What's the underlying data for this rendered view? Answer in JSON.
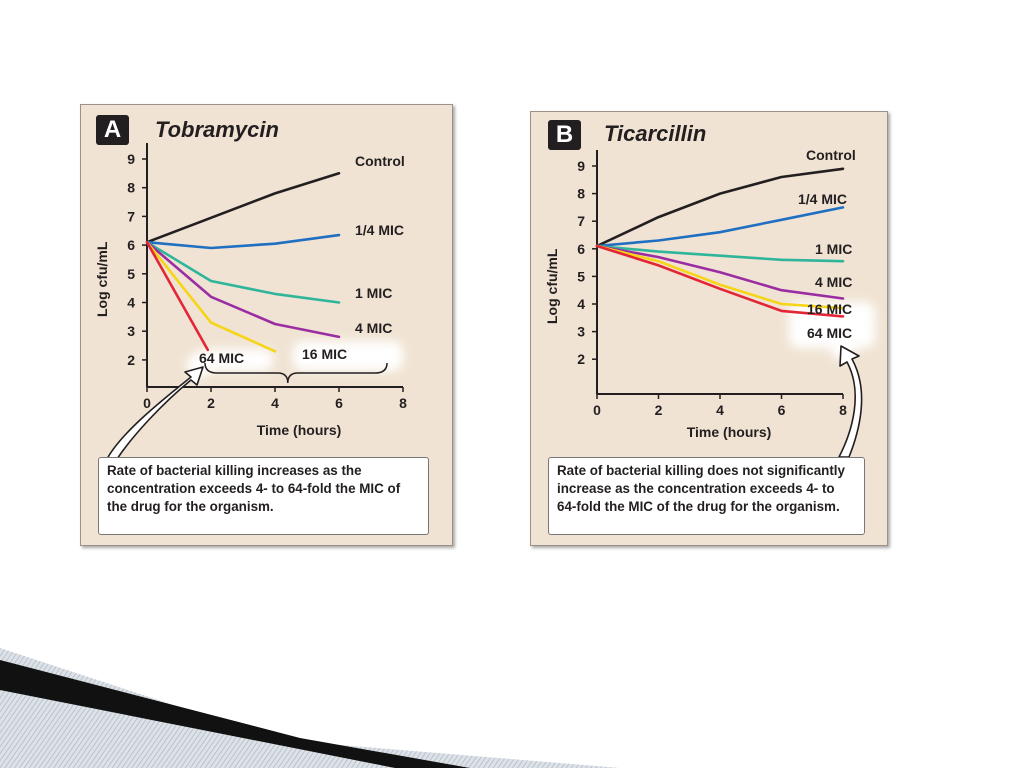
{
  "colors": {
    "panel_bg": "#f0e3d3",
    "Control": "#231f20",
    "1/4 MIC": "#1f6fc2",
    "1 MIC": "#2fb59a",
    "4 MIC": "#9b2da3",
    "16 MIC": "#f5d515",
    "64 MIC": "#e32636"
  },
  "panels": [
    {
      "badge": "A",
      "drug": "Tobramycin",
      "caption": "Rate of bacterial killing increases as the concentration exceeds 4- to 64-fold the MIC of the drug for the organism."
    },
    {
      "badge": "B",
      "drug": "Ticarcillin",
      "caption": "Rate of bacterial killing does not significantly increase as the concentration exceeds 4- to 64-fold the MIC of the drug for the organism."
    }
  ],
  "chart_data": [
    {
      "type": "line",
      "title": "Tobramycin",
      "xlabel": "Time (hours)",
      "ylabel": "Log cfu/mL",
      "xlim": [
        0,
        8
      ],
      "ylim": [
        1.5,
        9.3
      ],
      "xticks": [
        0,
        2,
        4,
        6,
        8
      ],
      "yticks": [
        2,
        3,
        4,
        5,
        6,
        7,
        8,
        9
      ],
      "series": [
        {
          "name": "Control",
          "points": [
            [
              0,
              6.1
            ],
            [
              2,
              6.95
            ],
            [
              4,
              7.8
            ],
            [
              6,
              8.5
            ]
          ]
        },
        {
          "name": "1/4 MIC",
          "points": [
            [
              0,
              6.1
            ],
            [
              2,
              5.9
            ],
            [
              4,
              6.05
            ],
            [
              6,
              6.35
            ]
          ]
        },
        {
          "name": "1 MIC",
          "points": [
            [
              0,
              6.1
            ],
            [
              2,
              4.75
            ],
            [
              4,
              4.3
            ],
            [
              6,
              4.0
            ]
          ]
        },
        {
          "name": "4 MIC",
          "points": [
            [
              0,
              6.1
            ],
            [
              2,
              4.2
            ],
            [
              4,
              3.25
            ],
            [
              6,
              2.8
            ]
          ]
        },
        {
          "name": "16 MIC",
          "points": [
            [
              0,
              6.1
            ],
            [
              2,
              3.3
            ],
            [
              4,
              2.3
            ]
          ]
        },
        {
          "name": "64 MIC",
          "points": [
            [
              0,
              6.1
            ],
            [
              1.9,
              2.35
            ]
          ]
        }
      ]
    },
    {
      "type": "line",
      "title": "Ticarcillin",
      "xlabel": "Time (hours)",
      "ylabel": "Log cfu/mL",
      "xlim": [
        0,
        8
      ],
      "ylim": [
        1.5,
        9.3
      ],
      "xticks": [
        0,
        2,
        4,
        6,
        8
      ],
      "yticks": [
        2,
        3,
        4,
        5,
        6,
        7,
        8,
        9
      ],
      "series": [
        {
          "name": "Control",
          "points": [
            [
              0,
              6.1
            ],
            [
              2,
              7.15
            ],
            [
              4,
              8.0
            ],
            [
              6,
              8.6
            ],
            [
              8,
              8.9
            ]
          ]
        },
        {
          "name": "1/4 MIC",
          "points": [
            [
              0,
              6.1
            ],
            [
              2,
              6.3
            ],
            [
              4,
              6.6
            ],
            [
              6,
              7.05
            ],
            [
              8,
              7.5
            ]
          ]
        },
        {
          "name": "1 MIC",
          "points": [
            [
              0,
              6.1
            ],
            [
              2,
              5.9
            ],
            [
              4,
              5.75
            ],
            [
              6,
              5.6
            ],
            [
              8,
              5.55
            ]
          ]
        },
        {
          "name": "4 MIC",
          "points": [
            [
              0,
              6.1
            ],
            [
              2,
              5.7
            ],
            [
              4,
              5.15
            ],
            [
              6,
              4.5
            ],
            [
              8,
              4.2
            ]
          ]
        },
        {
          "name": "16 MIC",
          "points": [
            [
              0,
              6.1
            ],
            [
              2,
              5.55
            ],
            [
              4,
              4.7
            ],
            [
              6,
              4.0
            ],
            [
              8,
              3.85
            ]
          ]
        },
        {
          "name": "64 MIC",
          "points": [
            [
              0,
              6.1
            ],
            [
              2,
              5.4
            ],
            [
              4,
              4.55
            ],
            [
              6,
              3.75
            ],
            [
              8,
              3.55
            ]
          ]
        }
      ]
    }
  ]
}
